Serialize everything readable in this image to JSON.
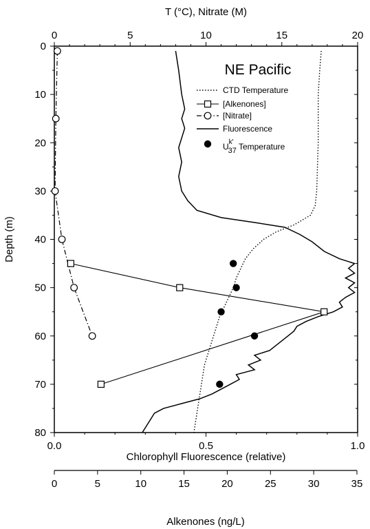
{
  "chart_data": {
    "type": "line",
    "title": "NE Pacific",
    "y_axis": {
      "label": "Depth (m)",
      "range": [
        80,
        0
      ],
      "ticks": [
        "0",
        "10",
        "20",
        "30",
        "40",
        "50",
        "60",
        "70",
        "80"
      ]
    },
    "axes_x": {
      "top": {
        "label": "T (°C), Nitrate (M)",
        "range": [
          0,
          20
        ],
        "ticks": [
          "0",
          "5",
          "10",
          "15",
          "20"
        ]
      },
      "bottom": {
        "label": "Chlorophyll Fluorescence (relative)",
        "range": [
          0,
          1
        ],
        "ticks": [
          "0.0",
          "0.5",
          "1.0"
        ]
      },
      "alkenone": {
        "label": "Alkenones (ng/L)",
        "range": [
          0,
          35
        ],
        "ticks": [
          "0",
          "5",
          "10",
          "15",
          "20",
          "25",
          "30",
          "35"
        ]
      }
    },
    "legend": {
      "placement": "top-right",
      "entries": {
        "ctd": "CTD Temperature",
        "alkenones": "[Alkenones]",
        "nitrate": "[Nitrate]",
        "fluorescence": "Fluorescence",
        "uk37_prefix": "U",
        "uk37_sup": "k'",
        "uk37_sub": "37",
        "uk37_suffix": " Temperature"
      }
    },
    "series": [
      {
        "key": "ctd",
        "axis": "top",
        "style": "dotted",
        "points": [
          [
            17.6,
            1
          ],
          [
            17.5,
            5
          ],
          [
            17.4,
            10
          ],
          [
            17.4,
            15
          ],
          [
            17.4,
            20
          ],
          [
            17.35,
            25
          ],
          [
            17.3,
            30
          ],
          [
            17.2,
            33
          ],
          [
            16.9,
            35
          ],
          [
            15.8,
            37
          ],
          [
            14.6,
            38.5
          ],
          [
            13.8,
            40
          ],
          [
            13.1,
            42
          ],
          [
            12.6,
            44
          ],
          [
            12.3,
            46
          ],
          [
            12.0,
            48
          ],
          [
            11.8,
            50
          ],
          [
            11.5,
            52
          ],
          [
            11.2,
            54
          ],
          [
            10.9,
            56
          ],
          [
            10.7,
            58
          ],
          [
            10.5,
            60
          ],
          [
            10.3,
            62
          ],
          [
            10.1,
            64
          ],
          [
            9.9,
            66
          ],
          [
            9.8,
            68
          ],
          [
            9.7,
            70
          ],
          [
            9.6,
            72
          ],
          [
            9.5,
            74
          ],
          [
            9.4,
            76
          ],
          [
            9.3,
            78
          ],
          [
            9.2,
            80
          ]
        ]
      },
      {
        "key": "alkenones",
        "axis": "alkenone",
        "style": "solid-square",
        "points": [
          [
            1.9,
            45
          ],
          [
            14.5,
            50
          ],
          [
            31.2,
            55
          ],
          [
            5.4,
            70
          ]
        ]
      },
      {
        "key": "nitrate",
        "axis": "top",
        "style": "dashdot-circle",
        "points": [
          [
            0.2,
            1
          ],
          [
            0.1,
            15
          ],
          [
            0.05,
            30
          ],
          [
            0.5,
            40
          ],
          [
            1.3,
            50
          ],
          [
            2.5,
            60
          ]
        ]
      },
      {
        "key": "fluorescence",
        "axis": "bottom",
        "style": "solid",
        "points": [
          [
            0.4,
            1
          ],
          [
            0.41,
            5
          ],
          [
            0.42,
            10
          ],
          [
            0.43,
            13
          ],
          [
            0.42,
            15
          ],
          [
            0.43,
            17
          ],
          [
            0.42,
            19
          ],
          [
            0.41,
            21
          ],
          [
            0.42,
            24
          ],
          [
            0.41,
            27
          ],
          [
            0.42,
            30
          ],
          [
            0.44,
            32
          ],
          [
            0.47,
            34
          ],
          [
            0.55,
            35.5
          ],
          [
            0.66,
            36.5
          ],
          [
            0.76,
            37.5
          ],
          [
            0.81,
            39
          ],
          [
            0.85,
            40.5
          ],
          [
            0.89,
            42.5
          ],
          [
            0.94,
            44
          ],
          [
            0.99,
            45
          ],
          [
            0.97,
            46
          ],
          [
            0.99,
            47
          ],
          [
            0.96,
            48
          ],
          [
            0.99,
            49
          ],
          [
            0.97,
            50
          ],
          [
            0.99,
            51
          ],
          [
            0.96,
            52
          ],
          [
            0.94,
            53
          ],
          [
            0.95,
            54
          ],
          [
            0.92,
            55
          ],
          [
            0.87,
            56
          ],
          [
            0.83,
            57
          ],
          [
            0.8,
            58
          ],
          [
            0.79,
            59
          ],
          [
            0.77,
            60
          ],
          [
            0.75,
            61
          ],
          [
            0.73,
            62
          ],
          [
            0.71,
            63
          ],
          [
            0.66,
            64
          ],
          [
            0.68,
            65
          ],
          [
            0.64,
            66
          ],
          [
            0.66,
            67
          ],
          [
            0.6,
            68
          ],
          [
            0.61,
            69
          ],
          [
            0.58,
            70
          ],
          [
            0.55,
            71
          ],
          [
            0.52,
            72
          ],
          [
            0.48,
            73
          ],
          [
            0.42,
            74
          ],
          [
            0.36,
            75
          ],
          [
            0.33,
            76
          ],
          [
            0.32,
            77
          ],
          [
            0.31,
            78
          ],
          [
            0.3,
            79
          ],
          [
            0.29,
            80
          ]
        ]
      },
      {
        "key": "uk37",
        "axis": "top",
        "style": "filled-dot",
        "points": [
          [
            11.8,
            45
          ],
          [
            12.0,
            50
          ],
          [
            11.0,
            55
          ],
          [
            13.2,
            60
          ],
          [
            10.9,
            70
          ]
        ]
      }
    ]
  }
}
